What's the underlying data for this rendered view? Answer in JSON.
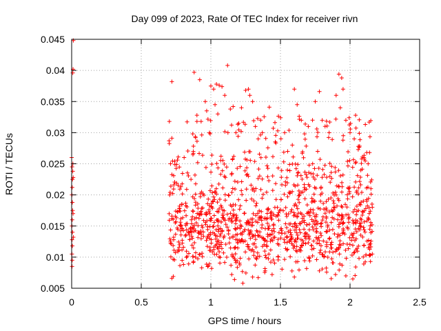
{
  "chart_data": {
    "type": "scatter",
    "title": "Day 099 of 2023, Rate Of TEC Index for receiver rivn",
    "xlabel": "GPS time / hours",
    "ylabel": "ROTI / TECUs",
    "xlim": [
      0,
      2.5
    ],
    "ylim": [
      0.005,
      0.045
    ],
    "x_ticks": [
      0,
      0.5,
      1,
      1.5,
      2,
      2.5
    ],
    "x_tick_labels": [
      "0",
      "0.5",
      "1",
      "1.5",
      "2",
      "2.5"
    ],
    "y_ticks": [
      0.005,
      0.01,
      0.015,
      0.02,
      0.025,
      0.03,
      0.035,
      0.04,
      0.045
    ],
    "y_tick_labels": [
      "0.005",
      "0.01",
      "0.015",
      "0.02",
      "0.025",
      "0.03",
      "0.035",
      "0.04",
      "0.045"
    ],
    "grid": true,
    "marker": "plus",
    "color": "#ff0000",
    "series": [
      {
        "points": [
          [
            0.0,
            0.026
          ],
          [
            0.003,
            0.0245
          ],
          [
            0.006,
            0.0225
          ],
          [
            0.004,
            0.0212
          ],
          [
            0.002,
            0.02
          ],
          [
            0.005,
            0.0188
          ],
          [
            0.007,
            0.0175
          ],
          [
            0.004,
            0.016
          ],
          [
            0.002,
            0.015
          ],
          [
            0.006,
            0.014
          ],
          [
            0.003,
            0.0128
          ],
          [
            0.005,
            0.0118
          ],
          [
            0.002,
            0.0105
          ],
          [
            0.004,
            0.0095
          ],
          [
            0.003,
            0.0085
          ],
          [
            0.008,
            0.0396
          ],
          [
            0.01,
            0.0402
          ],
          [
            0.012,
            0.0448
          ],
          [
            0.008,
            0.0238
          ],
          [
            0.01,
            0.017
          ],
          [
            0.012,
            0.0132
          ],
          [
            0.009,
            0.025
          ],
          [
            0.011,
            0.0228
          ],
          [
            0.7,
            0.0287
          ],
          [
            0.71,
            0.025
          ],
          [
            0.72,
            0.0382
          ],
          [
            0.73,
            0.0069
          ],
          [
            0.72,
            0.0066
          ],
          [
            0.74,
            0.0254
          ],
          [
            0.76,
            0.0256
          ],
          [
            0.88,
            0.0397
          ],
          [
            0.92,
            0.0385
          ],
          [
            0.9,
            0.0328
          ],
          [
            0.93,
            0.0318
          ],
          [
            0.96,
            0.035
          ],
          [
            0.97,
            0.0335
          ],
          [
            0.89,
            0.0292
          ],
          [
            0.87,
            0.0298
          ],
          [
            0.99,
            0.03
          ],
          [
            1.0,
            0.0375
          ],
          [
            1.02,
            0.037
          ],
          [
            1.04,
            0.0378
          ],
          [
            1.06,
            0.0376
          ],
          [
            1.08,
            0.0374
          ],
          [
            1.05,
            0.033
          ],
          [
            1.03,
            0.0345
          ],
          [
            1.1,
            0.036
          ],
          [
            1.12,
            0.0408
          ],
          [
            1.14,
            0.0338
          ],
          [
            1.16,
            0.0342
          ],
          [
            1.18,
            0.03
          ],
          [
            1.2,
            0.0315
          ],
          [
            1.22,
            0.034
          ],
          [
            1.25,
            0.0368
          ],
          [
            1.27,
            0.037
          ],
          [
            1.28,
            0.036
          ],
          [
            1.3,
            0.035
          ],
          [
            1.32,
            0.031
          ],
          [
            1.34,
            0.029
          ],
          [
            1.37,
            0.03
          ],
          [
            1.42,
            0.0341
          ],
          [
            1.53,
            0.03
          ],
          [
            1.6,
            0.037
          ],
          [
            1.62,
            0.0345
          ],
          [
            1.65,
            0.032
          ],
          [
            1.7,
            0.031
          ],
          [
            1.75,
            0.035
          ],
          [
            1.78,
            0.0366
          ],
          [
            1.8,
            0.032
          ],
          [
            1.85,
            0.03
          ],
          [
            1.9,
            0.036
          ],
          [
            1.92,
            0.0394
          ],
          [
            1.94,
            0.0388
          ],
          [
            1.95,
            0.037
          ],
          [
            1.93,
            0.034
          ],
          [
            1.97,
            0.032
          ],
          [
            2.0,
            0.03
          ],
          [
            2.04,
            0.0328
          ],
          [
            2.03,
            0.029
          ],
          [
            2.06,
            0.0278
          ],
          [
            2.1,
            0.026
          ],
          [
            2.12,
            0.0268
          ],
          [
            2.14,
            0.0268
          ],
          [
            2.13,
            0.025
          ],
          [
            2.15,
            0.021
          ],
          [
            2.16,
            0.018
          ],
          [
            2.14,
            0.012
          ],
          [
            2.16,
            0.0105
          ],
          [
            1.23,
            0.0058
          ],
          [
            1.17,
            0.0064
          ],
          [
            1.15,
            0.0072
          ],
          [
            1.3,
            0.0068
          ],
          [
            1.44,
            0.0072
          ],
          [
            1.6,
            0.0068
          ],
          [
            1.97,
            0.007
          ],
          [
            2.02,
            0.0065
          ],
          [
            1.78,
            0.0078
          ],
          [
            1.39,
            0.0078
          ]
        ]
      }
    ]
  }
}
